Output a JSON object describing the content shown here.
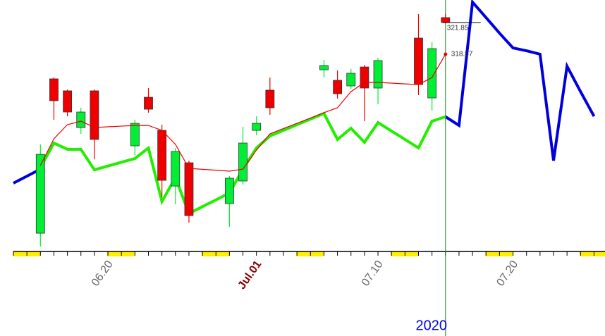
{
  "chart_data": {
    "type": "candlestick",
    "categories": [
      null,
      null,
      null,
      null,
      null,
      null,
      null,
      "06.20",
      null,
      null,
      null,
      null,
      null,
      null,
      null,
      null,
      null,
      null,
      "Jul.01",
      null,
      null,
      null,
      null,
      null,
      null,
      null,
      null,
      "07.10",
      null,
      null,
      null,
      null,
      null,
      null,
      null,
      null,
      null,
      "07.20",
      null,
      null,
      null,
      null,
      null,
      null
    ],
    "ylim": [
      298.16,
      324.18
    ],
    "up_color": "#00ee33",
    "down_color": "#ee0000",
    "month_label_color": "#8b0000",
    "label_color": "#666666",
    "candles": {
      "open": [
        null,
        null,
        300.05,
        316.02,
        314.78,
        310.98,
        314.78,
        null,
        null,
        309.09,
        314.12,
        310.69,
        304.93,
        307.34,
        null,
        null,
        303.11,
        305.45,
        310.69,
        314.85,
        null,
        null,
        null,
        316.96,
        315.87,
        315.29,
        317.25,
        315.07,
        null,
        null,
        320.24,
        314.05,
        322.36,
        null,
        null,
        null,
        null,
        null,
        null,
        null,
        null,
        null,
        null,
        null
      ],
      "high": [
        null,
        null,
        309.24,
        316.16,
        314.92,
        313.03,
        314.92,
        null,
        null,
        311.79,
        315.07,
        311.28,
        308.87,
        307.56,
        null,
        null,
        305.96,
        311.06,
        312.15,
        316.16,
        null,
        null,
        null,
        317.98,
        316.89,
        317.04,
        317.47,
        318.2,
        null,
        null,
        322.72,
        319.81,
        322.72,
        null,
        null,
        null,
        null,
        null,
        null,
        null,
        null,
        null,
        null,
        null
      ],
      "low": [
        null,
        null,
        298.66,
        311.79,
        312.15,
        310.33,
        307.7,
        null,
        null,
        308.14,
        312.52,
        303.77,
        303.04,
        301.14,
        null,
        null,
        300.71,
        305.08,
        310.18,
        312.3,
        null,
        null,
        null,
        316.16,
        313.97,
        315.0,
        311.64,
        313.39,
        null,
        null,
        314.34,
        312.73,
        321.78,
        null,
        null,
        null,
        null,
        null,
        null,
        null,
        null,
        null,
        null,
        null
      ],
      "close": [
        null,
        null,
        308.21,
        313.76,
        312.59,
        312.59,
        309.75,
        null,
        null,
        311.42,
        312.88,
        305.52,
        308.51,
        301.87,
        null,
        null,
        305.74,
        309.38,
        311.42,
        313.03,
        null,
        null,
        null,
        317.4,
        314.48,
        316.6,
        315.07,
        317.91,
        null,
        null,
        315.43,
        319.15,
        321.85,
        null,
        null,
        null,
        null,
        null,
        null,
        null,
        null,
        null,
        null,
        null
      ]
    },
    "series": [
      {
        "color": "#0000dd",
        "width": 4,
        "values": [
          305.23,
          305.95,
          306.68,
          null,
          null,
          null,
          null,
          null,
          null,
          null,
          null,
          null,
          null,
          null,
          null,
          null,
          null,
          null,
          null,
          null,
          null,
          null,
          null,
          null,
          null,
          null,
          null,
          null,
          null,
          null,
          null,
          null,
          312.1,
          311.2,
          323.96,
          322.36,
          320.75,
          319.22,
          318.93,
          318.57,
          307.56,
          317.33,
          314.7,
          312.15
        ]
      },
      {
        "color": "#22ee00",
        "width": 4,
        "values": [
          null,
          null,
          306.83,
          309.38,
          308.73,
          308.73,
          306.61,
          307.0,
          307.39,
          307.78,
          308.87,
          303.33,
          305.81,
          302.09,
          302.8,
          303.5,
          304.21,
          306.68,
          308.87,
          310.11,
          310.69,
          311.28,
          311.86,
          312.44,
          309.75,
          310.91,
          309.45,
          311.5,
          310.62,
          309.75,
          308.87,
          311.64,
          312.1,
          null,
          null,
          null,
          null,
          null,
          null,
          null,
          null,
          null,
          null,
          null
        ]
      },
      {
        "color": "#ee0000",
        "width": 1.2,
        "values": [
          null,
          null,
          307.05,
          309.82,
          311.28,
          311.64,
          310.99,
          311.06,
          311.13,
          311.2,
          311.2,
          310.69,
          309.24,
          306.76,
          306.66,
          306.57,
          306.47,
          306.68,
          308.65,
          310.33,
          310.88,
          311.42,
          311.97,
          312.52,
          313.03,
          314.7,
          315.65,
          315.65,
          315.58,
          315.5,
          315.43,
          316.16,
          318.57,
          null,
          null,
          null,
          null,
          null,
          null,
          null,
          null,
          null,
          null,
          null
        ]
      }
    ],
    "price_label": 321.85,
    "ma_label": 318.57,
    "year_label": "2020"
  }
}
